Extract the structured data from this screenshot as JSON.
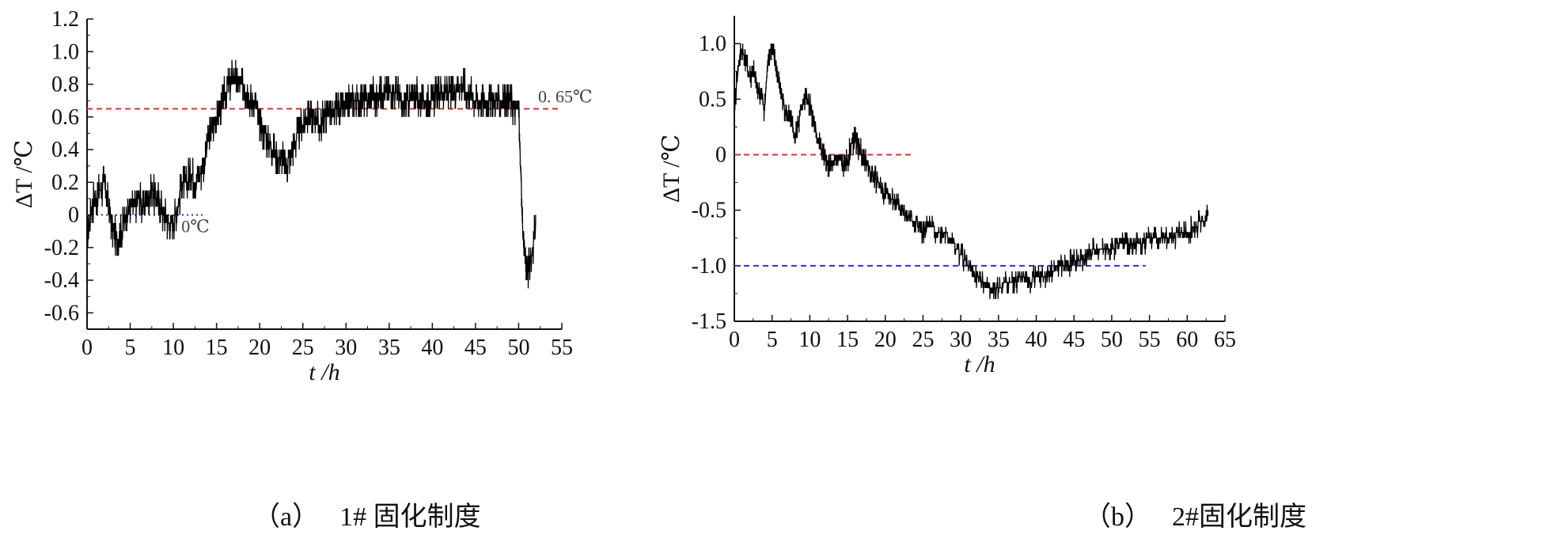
{
  "captions": {
    "a": {
      "paren": "（a）",
      "text": "1# 固化制度"
    },
    "b": {
      "paren": "（b）",
      "text": "2#固化制度"
    }
  },
  "chart_data": [
    {
      "type": "line",
      "id": "a",
      "xlabel": "t /h",
      "ylabel": "ΔT /℃",
      "xlim": [
        0,
        55
      ],
      "ylim": [
        -0.7,
        1.2
      ],
      "xticks": [
        0,
        5,
        10,
        15,
        20,
        25,
        30,
        35,
        40,
        45,
        50,
        55
      ],
      "yticks": [
        -0.6,
        -0.4,
        -0.2,
        0,
        0.2,
        0.4,
        0.6,
        0.8,
        1.0,
        1.2
      ],
      "ytick_labels": [
        "-0.6",
        "-0.4",
        "-0.2",
        "0",
        "0.2",
        "0.4",
        "0.6",
        "0.8",
        "1.0",
        "1.2"
      ],
      "series_color": "#000000",
      "series": [
        {
          "x": [
            0,
            0.5,
            1,
            1.5,
            2,
            2.5,
            3,
            3.5,
            4,
            4.5,
            5,
            5.5,
            6,
            6.5,
            7,
            7.5,
            8,
            8.5,
            9,
            9.5,
            10,
            10.5,
            11,
            11.5,
            12,
            12.5,
            13,
            13.5,
            14,
            14.5,
            15,
            15.5,
            16,
            16.5,
            17,
            17.5,
            18,
            18.5,
            19,
            19.5,
            20,
            20.5,
            21,
            21.5,
            22,
            22.5,
            23,
            23.5,
            24,
            24.5,
            25,
            25.5,
            26,
            26.5,
            27,
            27.5,
            28,
            28.5,
            29,
            29.5,
            30,
            30.5,
            31,
            31.5,
            32,
            32.5,
            33,
            33.5,
            34,
            34.5,
            35,
            35.5,
            36,
            36.5,
            37,
            37.5,
            38,
            38.5,
            39,
            39.5,
            40,
            40.5,
            41,
            41.5,
            42,
            42.5,
            43,
            43.5,
            44,
            44.5,
            45,
            45.5,
            46,
            46.5,
            47,
            47.5,
            48,
            48.5,
            49,
            49.5,
            50,
            50.5,
            51,
            51.5,
            52
          ],
          "values": [
            -0.15,
            0.05,
            0.1,
            0.15,
            0.2,
            0.05,
            -0.1,
            -0.15,
            -0.1,
            0.0,
            0.05,
            0.05,
            0.1,
            0.05,
            0.1,
            0.15,
            0.1,
            0.05,
            0.0,
            -0.05,
            -0.05,
            0.05,
            0.2,
            0.2,
            0.25,
            0.2,
            0.25,
            0.3,
            0.45,
            0.55,
            0.6,
            0.65,
            0.75,
            0.8,
            0.85,
            0.8,
            0.8,
            0.75,
            0.7,
            0.7,
            0.55,
            0.5,
            0.45,
            0.4,
            0.35,
            0.35,
            0.3,
            0.35,
            0.45,
            0.5,
            0.55,
            0.6,
            0.6,
            0.6,
            0.55,
            0.6,
            0.65,
            0.6,
            0.65,
            0.65,
            0.65,
            0.7,
            0.7,
            0.7,
            0.7,
            0.7,
            0.75,
            0.7,
            0.75,
            0.75,
            0.75,
            0.75,
            0.75,
            0.65,
            0.7,
            0.7,
            0.75,
            0.7,
            0.7,
            0.7,
            0.7,
            0.75,
            0.75,
            0.75,
            0.75,
            0.75,
            0.8,
            0.8,
            0.75,
            0.75,
            0.7,
            0.7,
            0.7,
            0.7,
            0.7,
            0.7,
            0.7,
            0.7,
            0.7,
            0.65,
            0.65,
            -0.15,
            -0.35,
            -0.25,
            -0.05
          ]
        }
      ],
      "reference_lines": [
        {
          "y": 0.65,
          "x_range": [
            0,
            55
          ],
          "color": "#e03030",
          "style": "dashed",
          "label": "0. 65℃"
        },
        {
          "y": 0,
          "x_range": [
            0,
            13.5
          ],
          "color": "#3030d0",
          "style": "dotted",
          "label": "0℃"
        }
      ]
    },
    {
      "type": "line",
      "id": "b",
      "xlabel": "t /h",
      "ylabel": "ΔT /℃",
      "xlim": [
        0,
        65
      ],
      "ylim": [
        -1.5,
        1.25
      ],
      "xticks": [
        0,
        5,
        10,
        15,
        20,
        25,
        30,
        35,
        40,
        45,
        50,
        55,
        60,
        65
      ],
      "yticks": [
        -1.5,
        -1.0,
        -0.5,
        0,
        0.5,
        1.0
      ],
      "ytick_labels": [
        "-1.5",
        "-1.0",
        "-0.5",
        "0",
        "0.5",
        "1.0"
      ],
      "series_color": "#000000",
      "series": [
        {
          "x": [
            0,
            0.5,
            1,
            1.5,
            2,
            2.5,
            3,
            3.5,
            4,
            4.5,
            5,
            5.5,
            6,
            6.5,
            7,
            7.5,
            8,
            8.5,
            9,
            9.5,
            10,
            10.5,
            11,
            11.5,
            12,
            12.5,
            13,
            13.5,
            14,
            14.5,
            15,
            15.5,
            16,
            16.5,
            17,
            17.5,
            18,
            19,
            20,
            21,
            22,
            23,
            24,
            25,
            26,
            27,
            28,
            29,
            30,
            31,
            32,
            33,
            34,
            35,
            36,
            37,
            38,
            39,
            40,
            41,
            42,
            43,
            44,
            45,
            46,
            47,
            48,
            49,
            50,
            51,
            52,
            53,
            54,
            55,
            56,
            57,
            58,
            59,
            60,
            61,
            62,
            62.8
          ],
          "values": [
            0.4,
            0.8,
            0.95,
            0.85,
            0.7,
            0.75,
            0.6,
            0.55,
            0.4,
            0.9,
            0.95,
            0.8,
            0.6,
            0.45,
            0.35,
            0.3,
            0.15,
            0.3,
            0.45,
            0.55,
            0.45,
            0.3,
            0.15,
            0.05,
            -0.05,
            -0.1,
            -0.1,
            -0.05,
            -0.05,
            -0.1,
            -0.05,
            0.1,
            0.15,
            0.05,
            0.0,
            -0.05,
            -0.15,
            -0.25,
            -0.35,
            -0.4,
            -0.5,
            -0.55,
            -0.6,
            -0.7,
            -0.65,
            -0.7,
            -0.7,
            -0.8,
            -0.9,
            -1.0,
            -1.1,
            -1.15,
            -1.2,
            -1.2,
            -1.15,
            -1.15,
            -1.1,
            -1.15,
            -1.1,
            -1.1,
            -1.05,
            -1.0,
            -1.0,
            -0.95,
            -0.95,
            -0.9,
            -0.85,
            -0.85,
            -0.85,
            -0.8,
            -0.8,
            -0.8,
            -0.8,
            -0.75,
            -0.75,
            -0.75,
            -0.75,
            -0.7,
            -0.7,
            -0.65,
            -0.6,
            -0.55
          ]
        }
      ],
      "reference_lines": [
        {
          "y": 0,
          "x_range": [
            0,
            23.5
          ],
          "color": "#e03030",
          "style": "dashed",
          "label": ""
        },
        {
          "y": -1.0,
          "x_range": [
            0,
            54.5
          ],
          "color": "#3030d0",
          "style": "dashed",
          "label": ""
        }
      ]
    }
  ]
}
